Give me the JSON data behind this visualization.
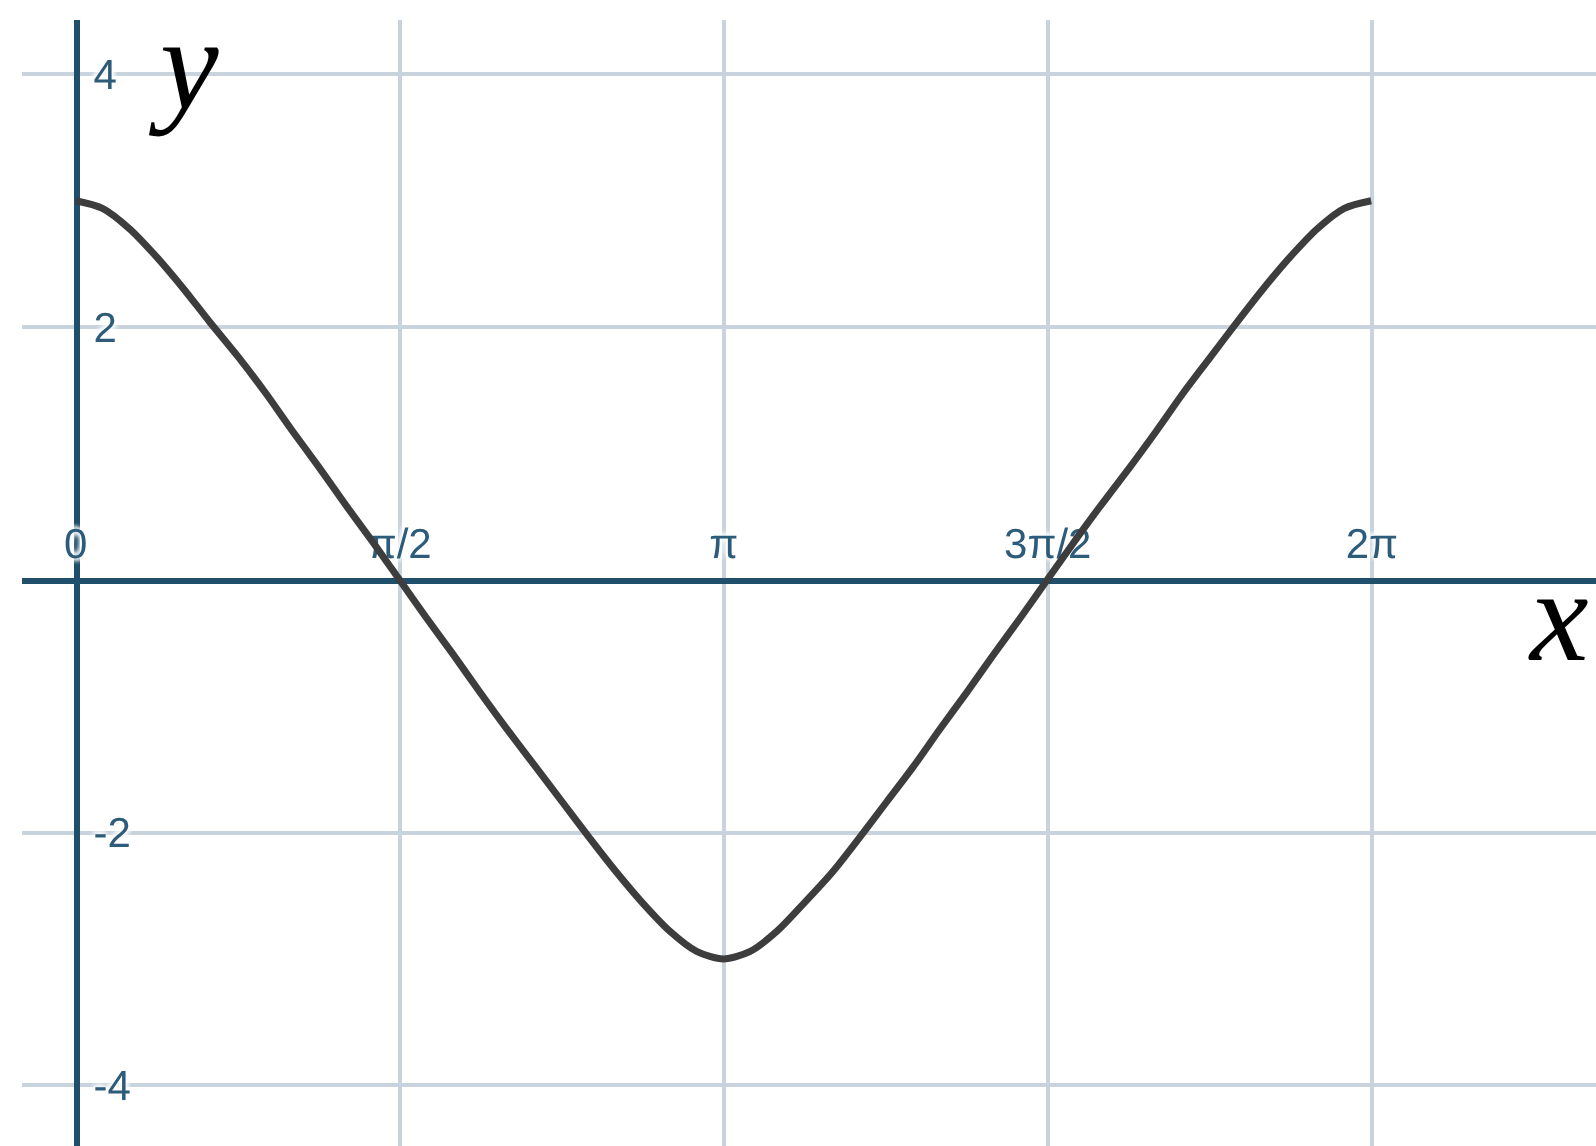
{
  "chart_data": {
    "type": "line",
    "xlabel": "x",
    "ylabel": "y",
    "x": [
      0,
      0.13,
      0.26,
      0.39,
      0.52,
      0.65,
      0.79,
      0.92,
      1.05,
      1.18,
      1.31,
      1.44,
      1.57,
      1.7,
      1.83,
      1.96,
      2.09,
      2.23,
      2.36,
      2.49,
      2.62,
      2.75,
      2.88,
      3.01,
      3.14,
      3.27,
      3.4,
      3.53,
      3.67,
      3.8,
      3.93,
      4.06,
      4.19,
      4.32,
      4.45,
      4.58,
      4.71,
      4.84,
      4.97,
      5.11,
      5.24,
      5.37,
      5.5,
      5.63,
      5.76,
      5.89,
      6.02,
      6.15,
      6.28
    ],
    "series": [
      {
        "color": "#3d3d3d",
        "values": [
          3.0,
          2.94,
          2.78,
          2.56,
          2.31,
          2.04,
          1.76,
          1.48,
          1.18,
          0.89,
          0.59,
          0.3,
          0,
          -0.3,
          -0.59,
          -0.89,
          -1.18,
          -1.48,
          -1.76,
          -2.04,
          -2.31,
          -2.56,
          -2.78,
          -2.94,
          -3.0,
          -2.94,
          -2.78,
          -2.56,
          -2.31,
          -2.04,
          -1.76,
          -1.48,
          -1.18,
          -0.89,
          -0.59,
          -0.3,
          0,
          0.3,
          0.59,
          0.89,
          1.18,
          1.48,
          1.76,
          2.04,
          2.31,
          2.56,
          2.78,
          2.94,
          3.0
        ]
      }
    ],
    "xlim": [
      -0.26,
      7.37
    ],
    "ylim": [
      -4.48,
      4.43
    ],
    "xticks": [
      0,
      {
        "value": 1.5708,
        "label": "π/2"
      },
      {
        "value": 3.1416,
        "label": "π"
      },
      {
        "value": 4.7124,
        "label": "3π/2"
      },
      {
        "value": 6.2832,
        "label": "2π"
      }
    ],
    "yticks": [
      -4,
      -2,
      2,
      4
    ],
    "grid": true,
    "marker": "none",
    "line_style": "solid"
  }
}
